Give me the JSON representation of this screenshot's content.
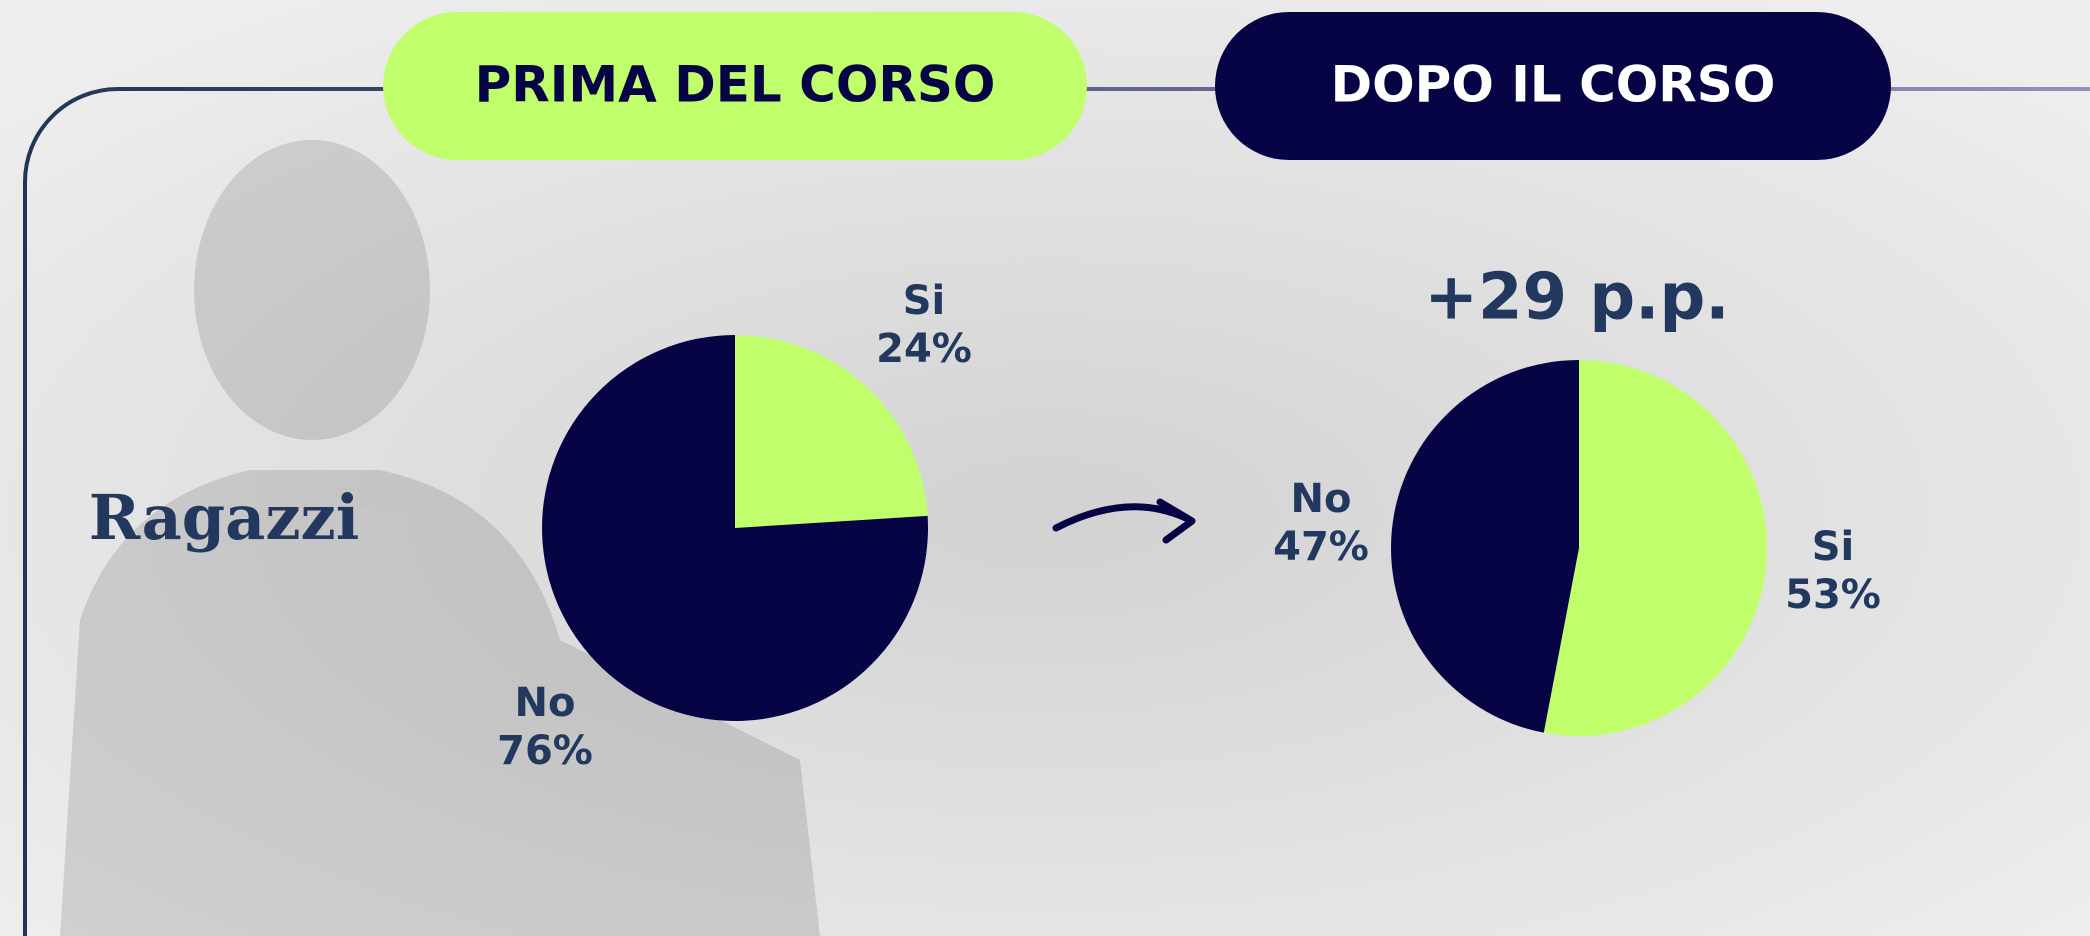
{
  "label": "Ragazzi",
  "chart_data": [
    {
      "type": "pie",
      "title": "PRIMA DEL CORSO",
      "title_color": "#c0ff6b",
      "title_text_color": "#060444",
      "categories": [
        "Si",
        "No"
      ],
      "values": [
        24,
        76
      ],
      "value_labels": [
        "24%",
        "76%"
      ],
      "colors": [
        "#c0ff6b",
        "#060444"
      ]
    },
    {
      "type": "pie",
      "title": "DOPO IL CORSO",
      "title_color": "#060444",
      "title_text_color": "#ffffff",
      "annotation": "+29 p.p.",
      "categories": [
        "Si",
        "No"
      ],
      "values": [
        53,
        47
      ],
      "value_labels": [
        "53%",
        "47%"
      ],
      "colors": [
        "#c0ff6b",
        "#060444"
      ]
    }
  ]
}
